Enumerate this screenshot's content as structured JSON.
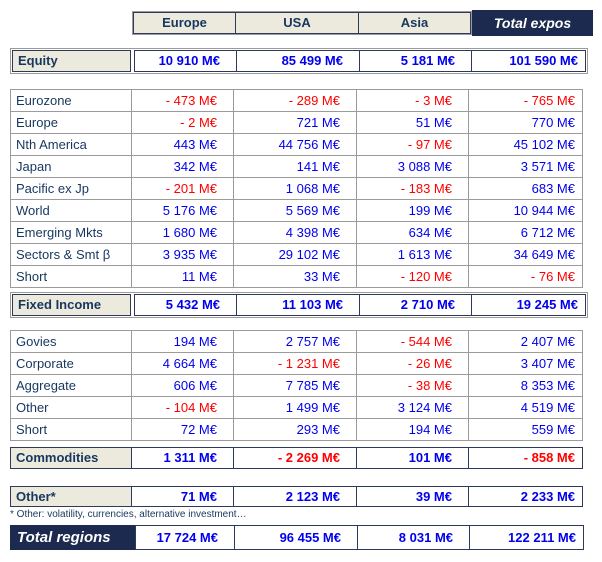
{
  "colors": {
    "positive_value": "#0000ee",
    "negative_value": "#ff0000",
    "navy_fill": "#1b2a4e",
    "header_fill": "#ece9dd",
    "label_text": "#17375e"
  },
  "header": {
    "columns": [
      "Europe",
      "USA",
      "Asia"
    ],
    "total_column": "Total expos"
  },
  "sections": [
    {
      "kind": "summary",
      "id": "equity",
      "framed": true,
      "label": "Equity",
      "values": [
        "10 910 M€",
        "85 499 M€",
        "5 181 M€",
        "101 590 M€"
      ]
    },
    {
      "kind": "detail",
      "id": "equity-breakdown",
      "rows": [
        {
          "label": "Eurozone",
          "values": [
            "- 473 M€",
            "- 289 M€",
            "- 3 M€",
            "- 765 M€"
          ]
        },
        {
          "label": "Europe",
          "values": [
            "- 2 M€",
            "721 M€",
            "51 M€",
            "770 M€"
          ]
        },
        {
          "label": "Nth America",
          "values": [
            "443 M€",
            "44 756 M€",
            "- 97 M€",
            "45 102 M€"
          ]
        },
        {
          "label": "Japan",
          "values": [
            "342 M€",
            "141 M€",
            "3 088 M€",
            "3 571 M€"
          ]
        },
        {
          "label": "Pacific ex Jp",
          "values": [
            "- 201 M€",
            "1 068 M€",
            "- 183 M€",
            "683 M€"
          ]
        },
        {
          "label": "World",
          "values": [
            "5 176 M€",
            "5 569 M€",
            "199 M€",
            "10 944 M€"
          ]
        },
        {
          "label": "Emerging Mkts",
          "values": [
            "1 680 M€",
            "4 398 M€",
            "634 M€",
            "6 712 M€"
          ]
        },
        {
          "label": "Sectors & Smt β",
          "values": [
            "3 935 M€",
            "29 102 M€",
            "1 613 M€",
            "34 649 M€"
          ]
        },
        {
          "label": "Short",
          "values": [
            "11 M€",
            "33 M€",
            "- 120 M€",
            "- 76 M€"
          ]
        }
      ]
    },
    {
      "kind": "summary",
      "id": "fixed-income",
      "framed": true,
      "label": "Fixed Income",
      "values": [
        "5 432 M€",
        "11 103 M€",
        "2 710 M€",
        "19 245 M€"
      ]
    },
    {
      "kind": "detail",
      "id": "fixed-income-breakdown",
      "rows": [
        {
          "label": "Govies",
          "values": [
            "194 M€",
            "2 757 M€",
            "- 544 M€",
            "2 407 M€"
          ]
        },
        {
          "label": "Corporate",
          "values": [
            "4 664 M€",
            "- 1 231 M€",
            "- 26 M€",
            "3 407 M€"
          ]
        },
        {
          "label": "Aggregate",
          "values": [
            "606 M€",
            "7 785 M€",
            "- 38 M€",
            "8 353 M€"
          ]
        },
        {
          "label": "Other",
          "values": [
            "- 104 M€",
            "1 499 M€",
            "3 124 M€",
            "4 519 M€"
          ]
        },
        {
          "label": "Short",
          "values": [
            "72 M€",
            "293 M€",
            "194 M€",
            "559 M€"
          ]
        }
      ]
    },
    {
      "kind": "summary",
      "id": "commodities",
      "label": "Commodities",
      "values": [
        "1 311 M€",
        "- 2 269 M€",
        "101 M€",
        "- 858 M€"
      ]
    },
    {
      "kind": "summary",
      "id": "other",
      "label": "Other*",
      "values": [
        "71 M€",
        "2 123 M€",
        "39 M€",
        "2 233 M€"
      ],
      "footnote": "* Other: volatility, currencies, alternative investment…"
    },
    {
      "kind": "summary",
      "id": "total-regions",
      "total": true,
      "label": "Total regions",
      "values": [
        "17 724 M€",
        "96 455 M€",
        "8 031 M€",
        "122 211 M€"
      ]
    }
  ]
}
